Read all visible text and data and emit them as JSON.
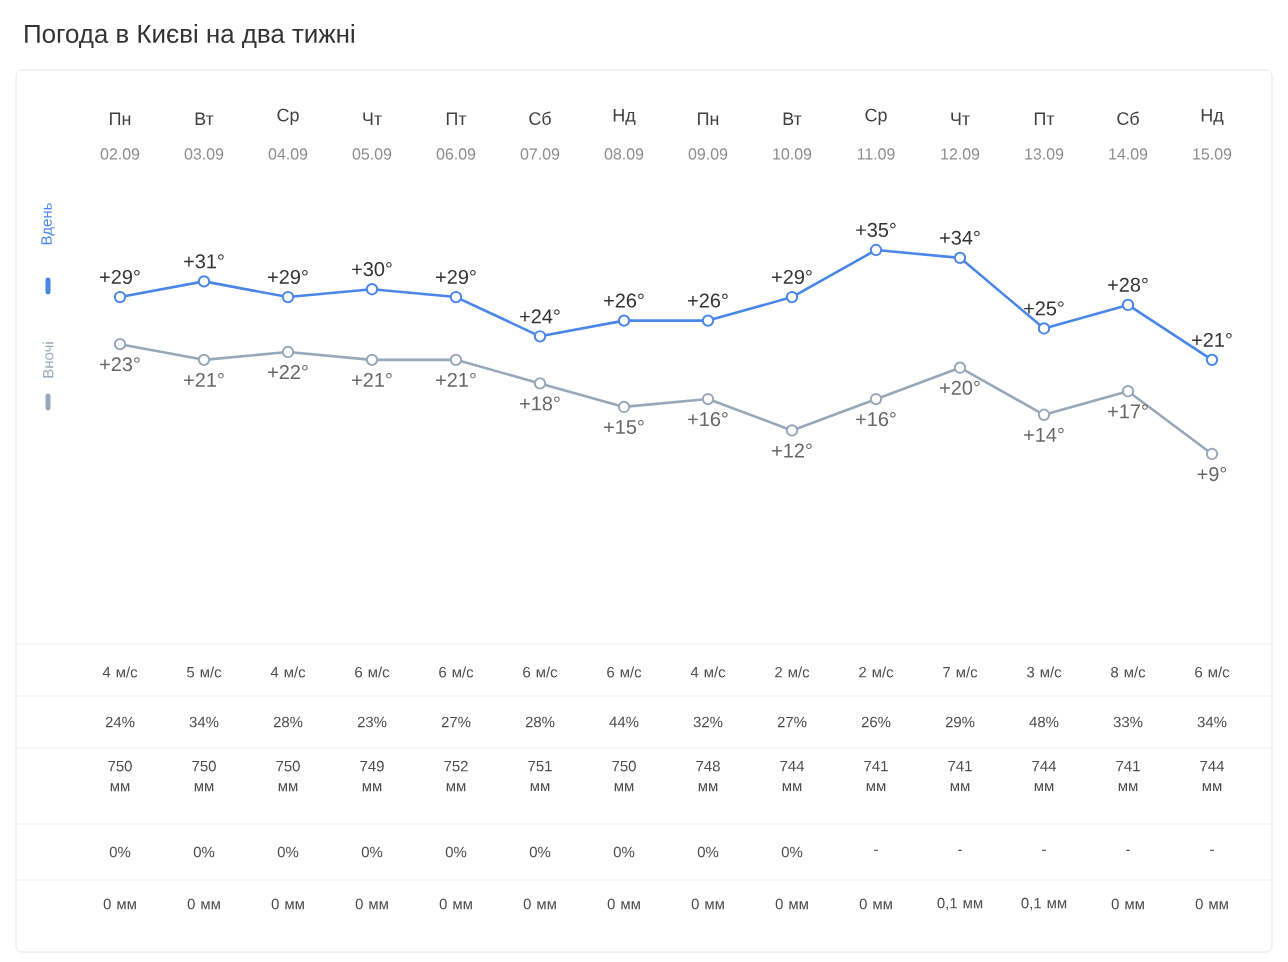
{
  "chart_data": {
    "type": "line",
    "title": "Погода в Києві на два тижні",
    "marker": "circle",
    "tick_labels": "x",
    "categories": [
      "Пн",
      "Вт",
      "Ср",
      "Чт",
      "Пт",
      "Сб",
      "Нд",
      "Пн",
      "Вт",
      "Ср",
      "Чт",
      "Пт",
      "Сб",
      "Нд"
    ],
    "series": [
      {
        "name": "Вдень",
        "color": "#4a86e8",
        "values": [
          29,
          31,
          29,
          30,
          29,
          24,
          26,
          26,
          29,
          35,
          34,
          25,
          28,
          21
        ],
        "value_labels": [
          "+29°",
          "+31°",
          "+29°",
          "+30°",
          "+29°",
          "+24°",
          "+26°",
          "+26°",
          "+29°",
          "+35°",
          "+34°",
          "+25°",
          "+28°",
          "+21°"
        ]
      },
      {
        "name": "Вночі",
        "color": "#98a8b8",
        "values": [
          23,
          21,
          22,
          21,
          21,
          18,
          15,
          16,
          12,
          16,
          20,
          14,
          17,
          9
        ],
        "value_labels": [
          "+23°",
          "+21°",
          "+22°",
          "+21°",
          "+21°",
          "+18°",
          "+15°",
          "+16°",
          "+12°",
          "+16°",
          "+20°",
          "+14°",
          "+17°",
          "+9°"
        ]
      }
    ],
    "annotations": [
      "02.09",
      "03.09",
      "04.09",
      "05.09",
      "06.09",
      "07.09",
      "08.09",
      "09.09",
      "10.09",
      "11.09",
      "12.09",
      "13.09",
      "14.09",
      "15.09",
      "4 м/с",
      "5 м/с",
      "4 м/с",
      "6 м/с",
      "6 м/с",
      "6 м/с",
      "6 м/с",
      "4 м/с",
      "2 м/с",
      "2 м/с",
      "7 м/с",
      "3 м/с",
      "8 м/с",
      "6 м/с",
      "24%",
      "34%",
      "28%",
      "23%",
      "27%",
      "28%",
      "44%",
      "32%",
      "27%",
      "26%",
      "29%",
      "48%",
      "33%",
      "34%",
      "750 мм",
      "750 мм",
      "750 мм",
      "749 мм",
      "752 мм",
      "751 мм",
      "750 мм",
      "748 мм",
      "744 мм",
      "741 мм",
      "741 мм",
      "744 мм",
      "741 мм",
      "744 мм",
      "0%",
      "0%",
      "0%",
      "0%",
      "0%",
      "0%",
      "0%",
      "0%",
      "0%",
      "-",
      "-",
      "-",
      "-",
      "-",
      "0 мм",
      "0 мм",
      "0 мм",
      "0 мм",
      "0 мм",
      "0 мм",
      "0 мм",
      "0 мм",
      "0 мм",
      "0 мм",
      "0,1 мм",
      "0,1 мм",
      "0 мм",
      "0 мм"
    ]
  }
}
